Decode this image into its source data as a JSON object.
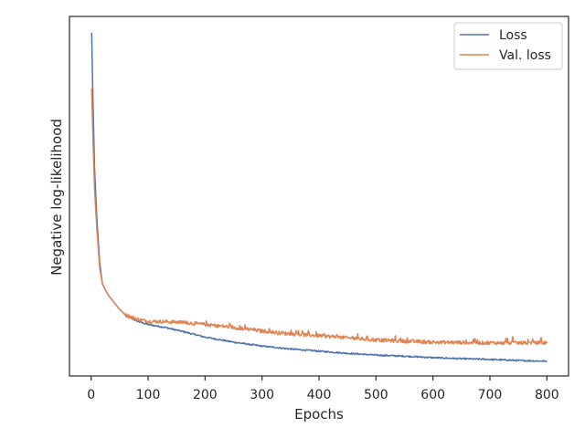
{
  "chart_data": {
    "type": "line",
    "title": "",
    "xlabel": "Epochs",
    "ylabel": "Negative log-likelihood",
    "xlim": [
      -38,
      838
    ],
    "ylim": [
      0.0,
      1.0
    ],
    "xticks": [
      0,
      100,
      200,
      300,
      400,
      500,
      600,
      700,
      800
    ],
    "yticks": [],
    "grid": false,
    "legend": {
      "position": "top-right"
    },
    "series": [
      {
        "name": "Loss",
        "color": "#4c72b0",
        "x": [
          1,
          3,
          6,
          10,
          15,
          20,
          30,
          40,
          50,
          60,
          80,
          100,
          130,
          160,
          200,
          250,
          300,
          350,
          400,
          450,
          500,
          550,
          600,
          650,
          700,
          750,
          800
        ],
        "y": [
          0.955,
          0.78,
          0.58,
          0.44,
          0.315,
          0.255,
          0.225,
          0.205,
          0.185,
          0.17,
          0.153,
          0.143,
          0.135,
          0.124,
          0.108,
          0.094,
          0.083,
          0.075,
          0.069,
          0.063,
          0.058,
          0.055,
          0.051,
          0.048,
          0.046,
          0.043,
          0.041
        ],
        "noise": 0.002
      },
      {
        "name": "Val. loss",
        "color": "#dd8452",
        "x": [
          1,
          3,
          6,
          10,
          15,
          20,
          30,
          40,
          50,
          60,
          80,
          100,
          130,
          160,
          200,
          250,
          300,
          350,
          400,
          450,
          500,
          550,
          600,
          650,
          700,
          750,
          800
        ],
        "y": [
          0.8,
          0.67,
          0.52,
          0.41,
          0.3,
          0.255,
          0.225,
          0.205,
          0.185,
          0.17,
          0.158,
          0.152,
          0.151,
          0.149,
          0.143,
          0.135,
          0.125,
          0.117,
          0.112,
          0.106,
          0.1,
          0.097,
          0.094,
          0.093,
          0.092,
          0.092,
          0.092
        ],
        "noise": 0.005
      }
    ]
  }
}
